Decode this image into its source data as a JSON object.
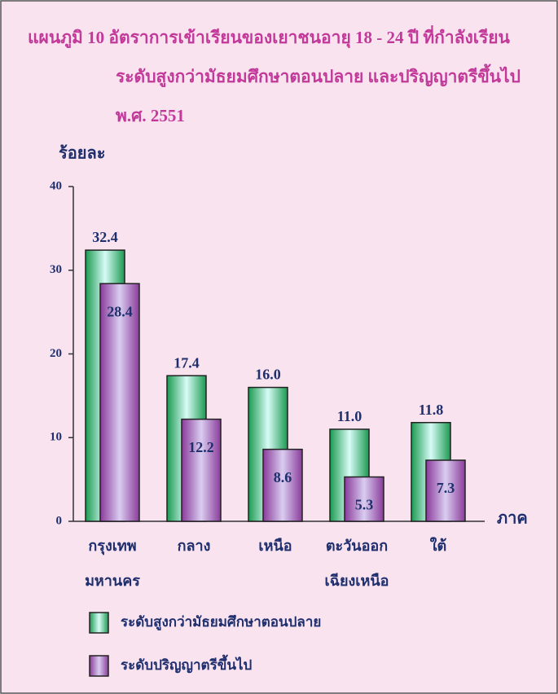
{
  "chart_data": {
    "type": "bar",
    "title": [
      "แผนภูมิ 10  อัตราการเข้าเรียนของเยาชนอายุ 18  - 24 ปี ที่กำลังเรียน",
      "ระดับสูงกว่ามัธยมศึกษาตอนปลาย และปริญญาตรีขึ้นไป",
      "พ.ศ. 2551"
    ],
    "y_label": "ร้อยละ",
    "x_label": "ภาค",
    "categories": [
      [
        "กรุงเทพ",
        "มหานคร"
      ],
      [
        "กลาง"
      ],
      [
        "เหนือ"
      ],
      [
        "ตะวันออก",
        "เฉียงเหนือ"
      ],
      [
        "ใต้"
      ]
    ],
    "series": [
      {
        "name": "ระดับสูงกว่ามัธยมศึกษาตอนปลาย",
        "color": "#1a9a50",
        "values": [
          32.4,
          17.4,
          16.0,
          11.0,
          11.8
        ],
        "value_labels": [
          "32.4",
          "17.4",
          "16.0",
          "11.0",
          "11.8"
        ]
      },
      {
        "name": "ระดับปริญญาตรีขึ้นไป",
        "color": "#8a3a9a",
        "values": [
          28.4,
          12.2,
          8.6,
          5.3,
          7.3
        ],
        "value_labels": [
          "28.4",
          "12.2",
          "8.6",
          "5.3",
          "7.3"
        ]
      }
    ],
    "ylim": [
      0,
      40
    ],
    "yticks": [
      0,
      10,
      20,
      30,
      40
    ]
  }
}
